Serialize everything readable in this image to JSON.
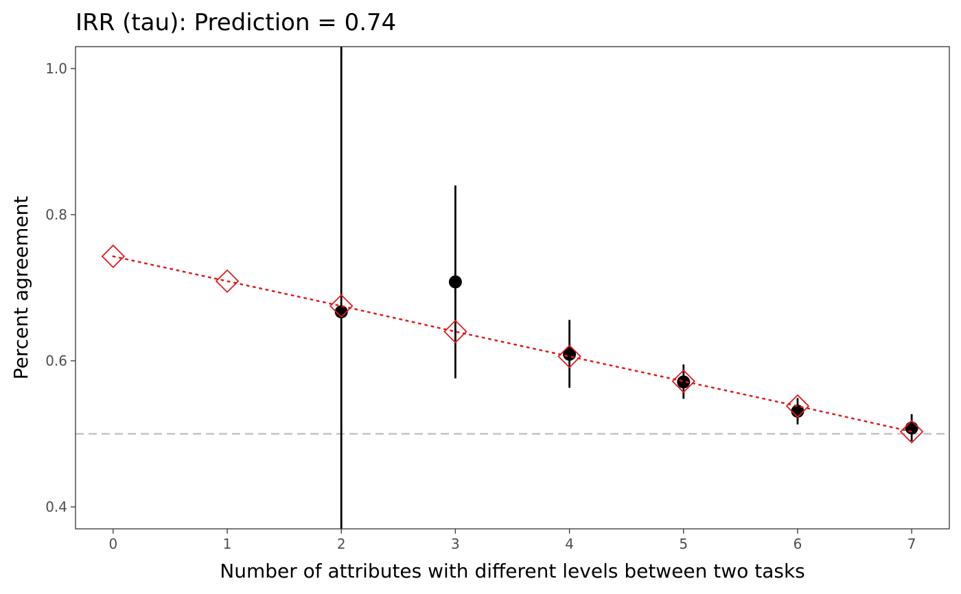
{
  "chart_data": {
    "type": "scatter",
    "title": "IRR (tau): Prediction = 0.74",
    "xlabel": "Number of attributes with different levels between two tasks",
    "ylabel": "Percent agreement",
    "xlim": [
      -0.33,
      7.33
    ],
    "ylim": [
      0.37,
      1.03
    ],
    "x_ticks": [
      0,
      1,
      2,
      3,
      4,
      5,
      6,
      7
    ],
    "x_tick_labels": [
      "0",
      "1",
      "2",
      "3",
      "4",
      "5",
      "6",
      "7"
    ],
    "y_ticks": [
      0.4,
      0.6,
      0.8,
      1.0
    ],
    "y_tick_labels": [
      "0.4",
      "0.6",
      "0.8",
      "1.0"
    ],
    "grid": false,
    "reference_line": {
      "y": 0.5,
      "style": "dashed",
      "color": "#bebebe"
    },
    "series": [
      {
        "type": "pointrange",
        "color": "#000000",
        "points": [
          {
            "x": 2,
            "y": 0.667,
            "ymin": 0.37,
            "ymax": 1.03
          },
          {
            "x": 3,
            "y": 0.708,
            "ymin": 0.576,
            "ymax": 0.84
          },
          {
            "x": 4,
            "y": 0.609,
            "ymin": 0.563,
            "ymax": 0.656
          },
          {
            "x": 5,
            "y": 0.571,
            "ymin": 0.548,
            "ymax": 0.595
          },
          {
            "x": 6,
            "y": 0.531,
            "ymin": 0.513,
            "ymax": 0.549
          },
          {
            "x": 7,
            "y": 0.508,
            "ymin": 0.49,
            "ymax": 0.527
          }
        ]
      },
      {
        "type": "line-diamond",
        "color": "#e41a1c",
        "line_style": "dotted",
        "x": [
          0,
          1,
          2,
          3,
          4,
          5,
          6,
          7
        ],
        "y": [
          0.743,
          0.709,
          0.675,
          0.64,
          0.606,
          0.572,
          0.538,
          0.503
        ]
      }
    ]
  }
}
